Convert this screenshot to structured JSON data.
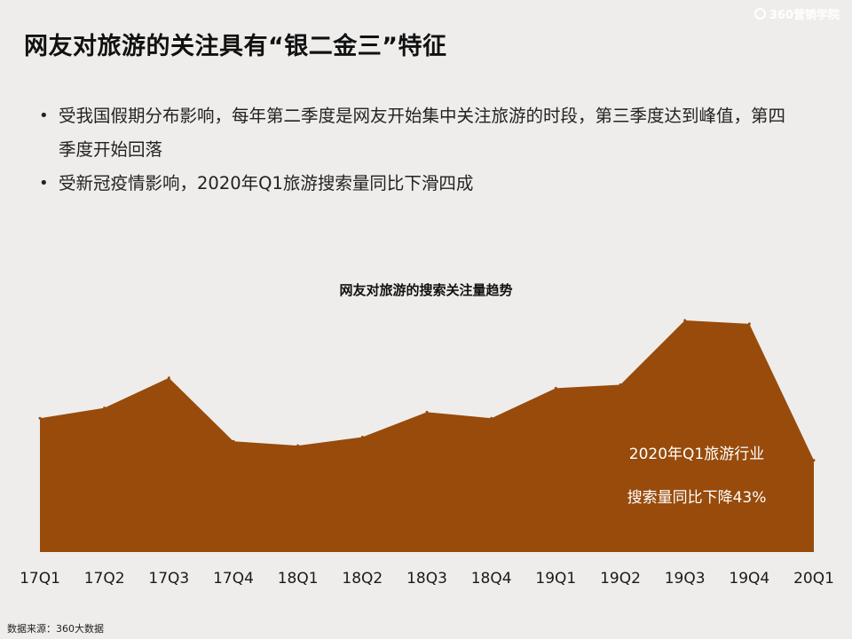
{
  "logo": {
    "text": "360营销学院"
  },
  "title": "网友对旅游的关注具有“银二金三”特征",
  "bullets": [
    "受我国假期分布影响，每年第二季度是网友开始集中关注旅游的时段，第三季度达到峰值，第四季度开始回落",
    "受新冠疫情影响，2020年Q1旅游搜索量同比下滑四成"
  ],
  "chart_data": {
    "type": "area",
    "title": "网友对旅游的搜索关注量趋势",
    "categories": [
      "17Q1",
      "17Q2",
      "17Q3",
      "17Q4",
      "18Q1",
      "18Q2",
      "18Q3",
      "18Q4",
      "19Q1",
      "19Q2",
      "19Q3",
      "19Q4",
      "20Q1"
    ],
    "series": [
      {
        "values": [
          156,
          168,
          203,
          129,
          124,
          134,
          163,
          156,
          191,
          195,
          270,
          266,
          107
        ],
        "color": "#984b0b"
      }
    ],
    "ylim": [
      0,
      300
    ],
    "grid": false,
    "annotations": [
      "2020年Q1旅游行业",
      "搜索量同比下降43%"
    ]
  },
  "source": "数据来源：360大数据"
}
